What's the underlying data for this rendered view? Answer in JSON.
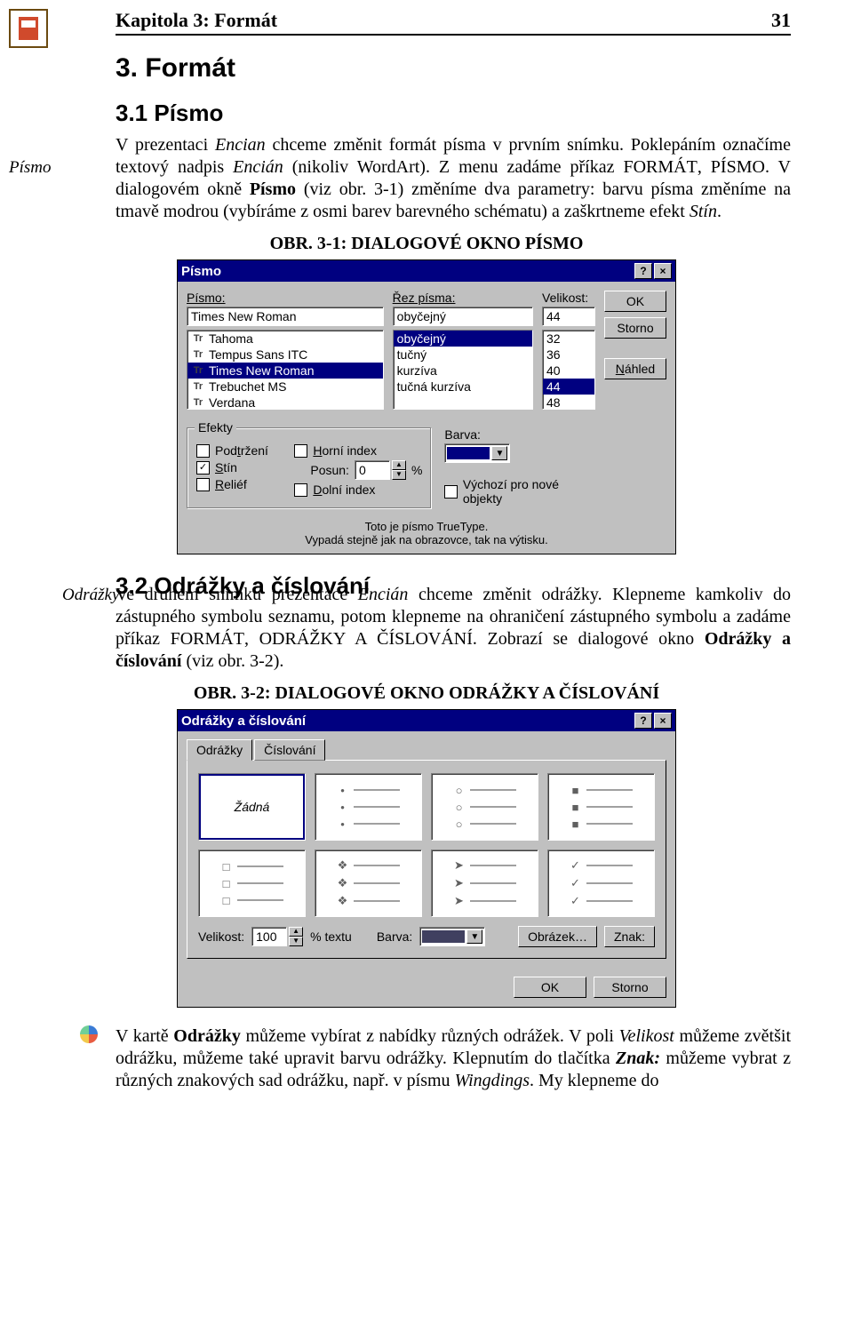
{
  "header": {
    "chapter": "Kapitola 3: Formát",
    "page": "31"
  },
  "section1": {
    "title": "3. Formát"
  },
  "section11": {
    "title": "3.1 Písmo",
    "margin_note": "Písmo",
    "paragraph_html": "V prezentaci <i>Encian</i> chceme změnit formát písma v prvním snímku. Poklepáním označíme textový nadpis <i>Encián</i> (nikoliv WordArt). Z menu zadáme příkaz F<span class='smallcaps'>ORMÁT</span>, P<span class='smallcaps'>ÍSMO</span>. V dialogovém okně <b>Písmo</b> (viz obr. 3-1) změníme dva parametry: barvu písma změníme na tmavě modrou (vybíráme z osmi barev barevného schématu) a zaškrtneme efekt <i>Stín</i>."
  },
  "fig1": {
    "caption": "OBR. 3-1: DIALOGOVÉ OKNO PÍSMO",
    "title": "Písmo",
    "labels": {
      "font": "Písmo:",
      "style": "Řez písma:",
      "size": "Velikost:"
    },
    "font_value": "Times New Roman",
    "style_value": "obyčejný",
    "size_value": "44",
    "font_list": [
      "Tahoma",
      "Tempus Sans ITC",
      "Times New Roman",
      "Trebuchet MS",
      "Verdana"
    ],
    "font_list_selected": "Times New Roman",
    "style_list": [
      "obyčejný",
      "tučný",
      "kurzíva",
      "tučná kurzíva"
    ],
    "style_list_selected": "obyčejný",
    "size_list": [
      "32",
      "36",
      "40",
      "44",
      "48"
    ],
    "size_list_selected": "44",
    "btn_ok": "OK",
    "btn_cancel": "Storno",
    "btn_preview": "Náhled",
    "group_effects": "Efekty",
    "cb_underline": "Podtržení",
    "cb_underline_checked": false,
    "cb_shadow": "Stín",
    "cb_shadow_checked": true,
    "cb_relief": "Reliéf",
    "cb_relief_checked": false,
    "cb_super": "Horní index",
    "cb_super_checked": false,
    "lbl_shift": "Posun:",
    "shift_value": "0",
    "shift_unit": "%",
    "cb_sub": "Dolní index",
    "cb_sub_checked": false,
    "lbl_color": "Barva:",
    "color_hex": "#000080",
    "cb_default": "Výchozí pro nové objekty",
    "cb_default_checked": false,
    "footer1": "Toto je písmo TrueType.",
    "footer2": "Vypadá stejně jak na obrazovce, tak na výtisku."
  },
  "section12": {
    "title": "3.2 Odrážky a číslování",
    "margin_note": "Odrážky",
    "paragraph_html": "Ve druhém snímku prezentace <i>Encián</i> chceme změnit odrážky. Klepneme kamkoliv do zástupného symbolu seznamu, potom klepneme na ohraničení zástupného symbolu a zadáme příkaz F<span class='smallcaps'>ORMÁT</span>, O<span class='smallcaps'>DRÁŽKY A ČÍSLOVÁNÍ</span>. Zobrazí se dialogové okno <b>Odrážky a číslování</b> (viz obr. 3-2)."
  },
  "fig2": {
    "caption": "OBR. 3-2: DIALOGOVÉ OKNO ODRÁŽKY A ČÍSLOVÁNÍ",
    "title": "Odrážky a číslování",
    "tab1": "Odrážky",
    "tab2": "Číslování",
    "cell_none": "Žádná",
    "bullets_row1": [
      "•",
      "○",
      "■"
    ],
    "bullets_row2": [
      "□",
      "❖",
      "➤",
      "✓"
    ],
    "selected_index": 0,
    "lbl_size": "Velikost:",
    "size_value": "100",
    "size_unit": "% textu",
    "lbl_color": "Barva:",
    "color_hex": "#404060",
    "btn_image": "Obrázek…",
    "btn_char": "Znak:",
    "btn_ok": "OK",
    "btn_cancel": "Storno"
  },
  "trailing": {
    "paragraph_html": "V kartě <b>Odrážky</b> můžeme vybírat z nabídky různých odrážek. V poli <i>Velikost</i> můžeme zvětšit odrážku, můžeme také upravit barvu odrážky. Klepnutím do tlačítka <b><i>Znak:</i></b> můžeme vybrat z různých znakových sad odrážku, např. v písmu <i>Wingdings</i>. My klepneme do"
  }
}
